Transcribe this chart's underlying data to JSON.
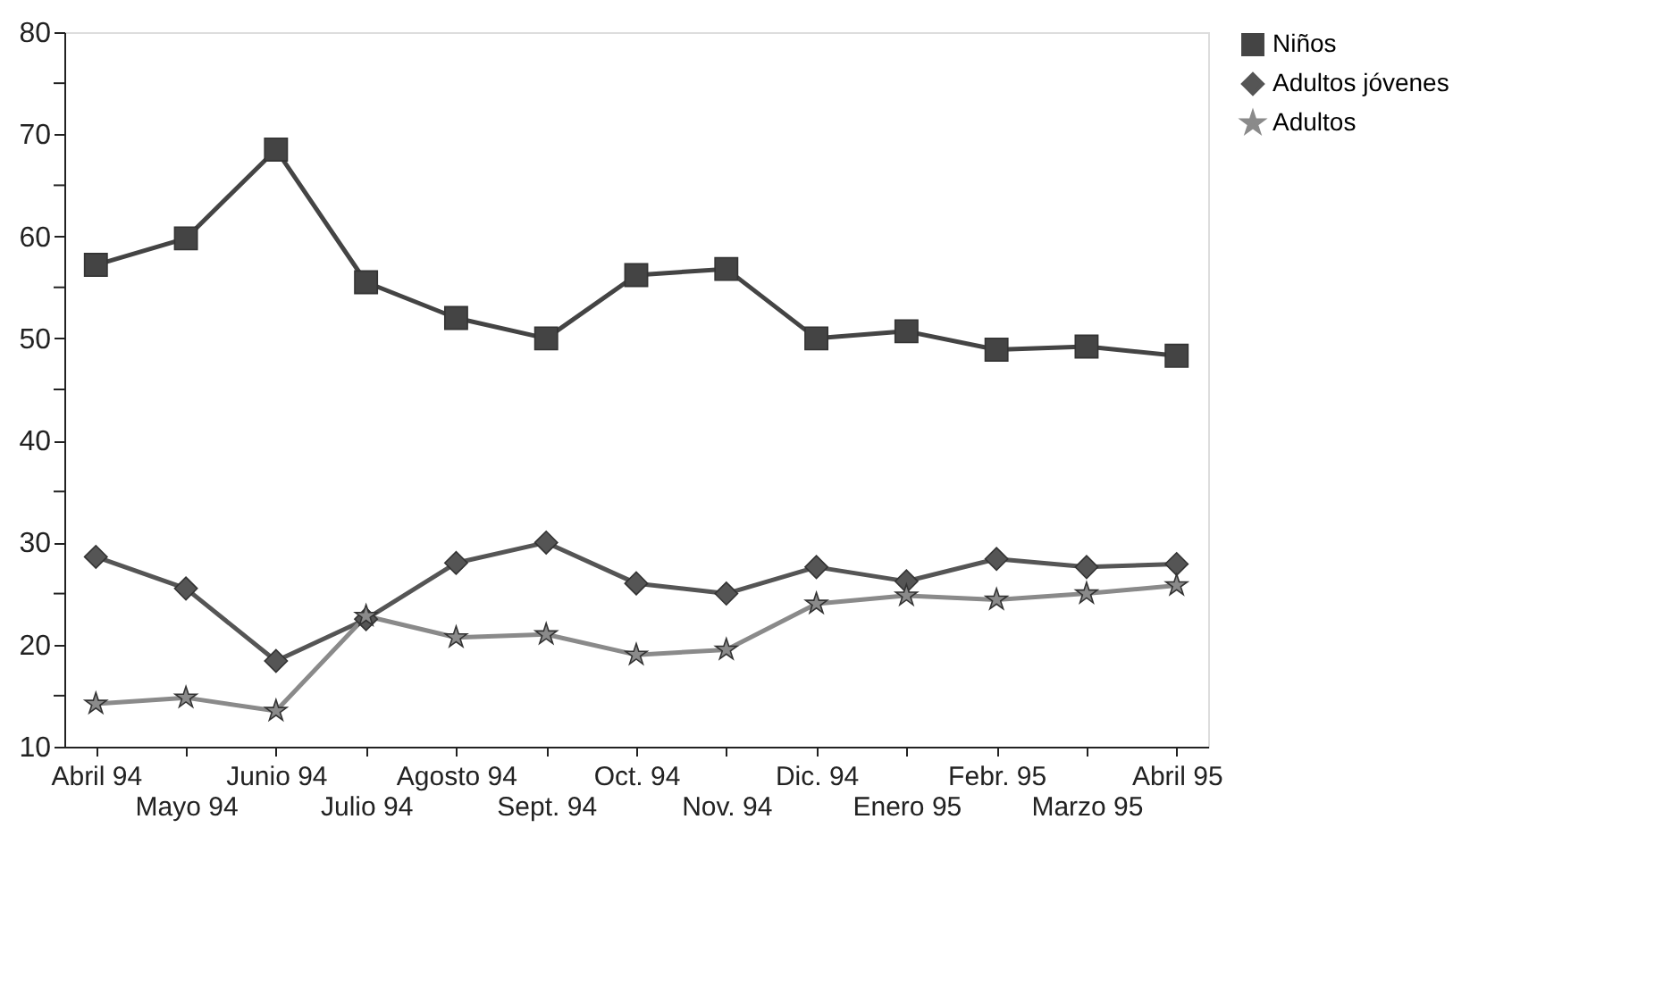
{
  "chart_data": {
    "type": "line",
    "categories": [
      "Abril 94",
      "Mayo 94",
      "Junio 94",
      "Julio 94",
      "Agosto 94",
      "Sept. 94",
      "Oct. 94",
      "Nov. 94",
      "Dic. 94",
      "Enero 95",
      "Febr. 95",
      "Marzo 95",
      "Abril 95"
    ],
    "series": [
      {
        "name": "Niños",
        "color": "#444444",
        "marker": "square",
        "values": [
          57.2,
          59.8,
          68.5,
          55.5,
          52,
          50,
          56.2,
          56.8,
          50,
          50.7,
          48.9,
          49.2,
          48.3
        ]
      },
      {
        "name": "Adultos jóvenes",
        "color": "#555555",
        "marker": "diamond",
        "values": [
          28.6,
          25.5,
          18.4,
          22.5,
          28,
          30,
          26,
          25,
          27.6,
          26.2,
          28.4,
          27.6,
          27.9
        ]
      },
      {
        "name": "Adultos",
        "color": "#8a8a8a",
        "marker": "star",
        "values": [
          14.2,
          14.8,
          13.5,
          22.8,
          20.7,
          21,
          19,
          19.5,
          24,
          24.8,
          24.4,
          25,
          25.8
        ]
      }
    ],
    "ylim": [
      10,
      80
    ],
    "yticks": [
      10,
      {
        "value": 15,
        "label": null
      },
      20,
      {
        "value": 25,
        "label": null
      },
      30,
      {
        "value": 35,
        "label": null
      },
      40,
      {
        "value": 45,
        "label": null
      },
      50,
      {
        "value": 55,
        "label": null
      },
      60,
      {
        "value": 65,
        "label": null
      },
      70,
      {
        "value": 75,
        "label": null
      },
      80
    ],
    "grid": false,
    "legend": "top right",
    "line_style": "solid"
  }
}
